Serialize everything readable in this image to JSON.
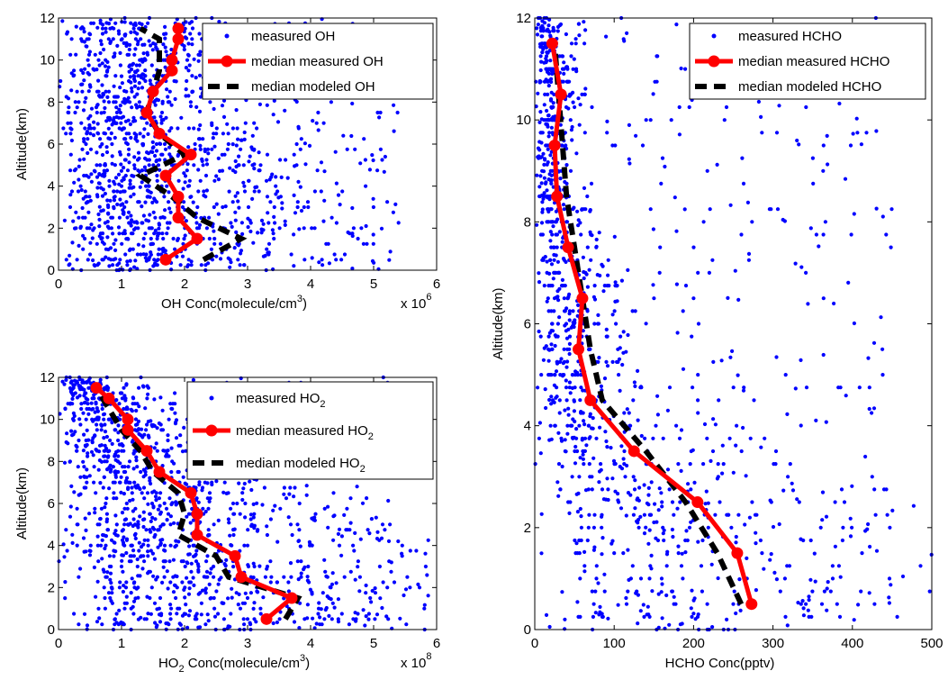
{
  "chart_data": [
    {
      "type": "scatter",
      "xlabel": "OH Conc(molecule/cm",
      "xlabel_sup": "3",
      "xlabel_end": ")",
      "x_multiplier": "x 10",
      "x_multiplier_exp": "6",
      "ylabel": "Altitude(km)",
      "xlim": [
        0,
        6
      ],
      "ylim": [
        0,
        12
      ],
      "xticks": [
        "0",
        "1",
        "2",
        "3",
        "4",
        "5",
        "6"
      ],
      "yticks": [
        "0",
        "2",
        "4",
        "6",
        "8",
        "10",
        "12"
      ],
      "legend_position": "top-right",
      "legend": [
        {
          "label": "measured OH",
          "sub": ""
        },
        {
          "label": "median measured OH",
          "sub": ""
        },
        {
          "label": "median modeled OH",
          "sub": ""
        }
      ],
      "scatter_summary": {
        "x_range": [
          0,
          6
        ],
        "y_range": [
          0,
          12
        ],
        "density": "high near x<3"
      },
      "series": [
        {
          "role": "median-measured",
          "color": "#ff0000",
          "x": [
            1.7,
            2.2,
            1.9,
            1.9,
            1.7,
            2.1,
            1.6,
            1.4,
            1.5,
            1.8,
            1.8,
            1.9,
            1.9
          ],
          "y": [
            0.5,
            1.5,
            2.5,
            3.5,
            4.5,
            5.5,
            6.5,
            7.5,
            8.5,
            9.5,
            10.0,
            11.0,
            11.5
          ]
        },
        {
          "role": "median-modeled",
          "color": "#000000",
          "x": [
            2.3,
            2.9,
            2.2,
            1.8,
            1.3,
            2.0,
            1.6,
            1.4,
            1.5,
            1.6,
            1.6,
            1.6,
            1.3
          ],
          "y": [
            0.5,
            1.5,
            2.5,
            3.5,
            4.5,
            5.5,
            6.5,
            7.5,
            8.5,
            9.5,
            10.0,
            11.0,
            11.5
          ]
        }
      ]
    },
    {
      "type": "scatter",
      "xlabel": "HO",
      "xlabel_sub": "2",
      "xlabel_rest": " Conc(molecule/cm",
      "xlabel_sup": "3",
      "xlabel_end": ")",
      "x_multiplier": "x 10",
      "x_multiplier_exp": "8",
      "ylabel": "Altitude(km)",
      "xlim": [
        0,
        6
      ],
      "ylim": [
        0,
        12
      ],
      "xticks": [
        "0",
        "1",
        "2",
        "3",
        "4",
        "5",
        "6"
      ],
      "yticks": [
        "0",
        "2",
        "4",
        "6",
        "8",
        "10",
        "12"
      ],
      "legend_position": "top-right",
      "legend": [
        {
          "label": "measured HO",
          "sub": "2"
        },
        {
          "label": "median measured HO",
          "sub": "2"
        },
        {
          "label": "median modeled HO",
          "sub": "2"
        }
      ],
      "series": [
        {
          "role": "median-measured",
          "color": "#ff0000",
          "x": [
            3.3,
            3.7,
            2.9,
            2.8,
            2.2,
            2.2,
            2.1,
            1.6,
            1.4,
            1.1,
            1.1,
            0.8,
            0.6
          ],
          "y": [
            0.5,
            1.5,
            2.5,
            3.5,
            4.5,
            5.5,
            6.5,
            7.5,
            8.5,
            9.5,
            10.0,
            11.0,
            11.5
          ]
        },
        {
          "role": "median-modeled",
          "color": "#000000",
          "x": [
            3.6,
            3.8,
            2.7,
            2.5,
            1.9,
            2.0,
            1.9,
            1.5,
            1.3,
            1.0,
            0.9,
            0.7,
            0.6
          ],
          "y": [
            0.5,
            1.5,
            2.5,
            3.5,
            4.5,
            5.5,
            6.5,
            7.5,
            8.5,
            9.5,
            10.0,
            11.0,
            11.5
          ]
        }
      ]
    },
    {
      "type": "scatter",
      "xlabel": "HCHO Conc(pptv)",
      "ylabel": "Altitude(km)",
      "xlim": [
        0,
        500
      ],
      "ylim": [
        0,
        12
      ],
      "xticks": [
        "0",
        "100",
        "200",
        "300",
        "400",
        "500"
      ],
      "yticks": [
        "0",
        "2",
        "4",
        "6",
        "8",
        "10",
        "12"
      ],
      "legend_position": "top-right",
      "legend": [
        {
          "label": "measured HCHO",
          "sub": ""
        },
        {
          "label": "median measured HCHO",
          "sub": ""
        },
        {
          "label": "median modeled HCHO",
          "sub": ""
        }
      ],
      "series": [
        {
          "role": "median-measured",
          "color": "#ff0000",
          "x": [
            273,
            255,
            205,
            125,
            70,
            55,
            60,
            42,
            28,
            25,
            33,
            22
          ],
          "y": [
            0.5,
            1.5,
            2.5,
            3.5,
            4.5,
            5.5,
            6.5,
            7.5,
            8.5,
            9.5,
            10.5,
            11.5
          ]
        },
        {
          "role": "median-modeled",
          "color": "#000000",
          "x": [
            260,
            230,
            190,
            140,
            85,
            70,
            60,
            50,
            40,
            35,
            30,
            25
          ],
          "y": [
            0.5,
            1.5,
            2.5,
            3.5,
            4.5,
            5.5,
            6.5,
            7.5,
            8.5,
            9.5,
            10.5,
            11.5
          ]
        }
      ]
    }
  ]
}
